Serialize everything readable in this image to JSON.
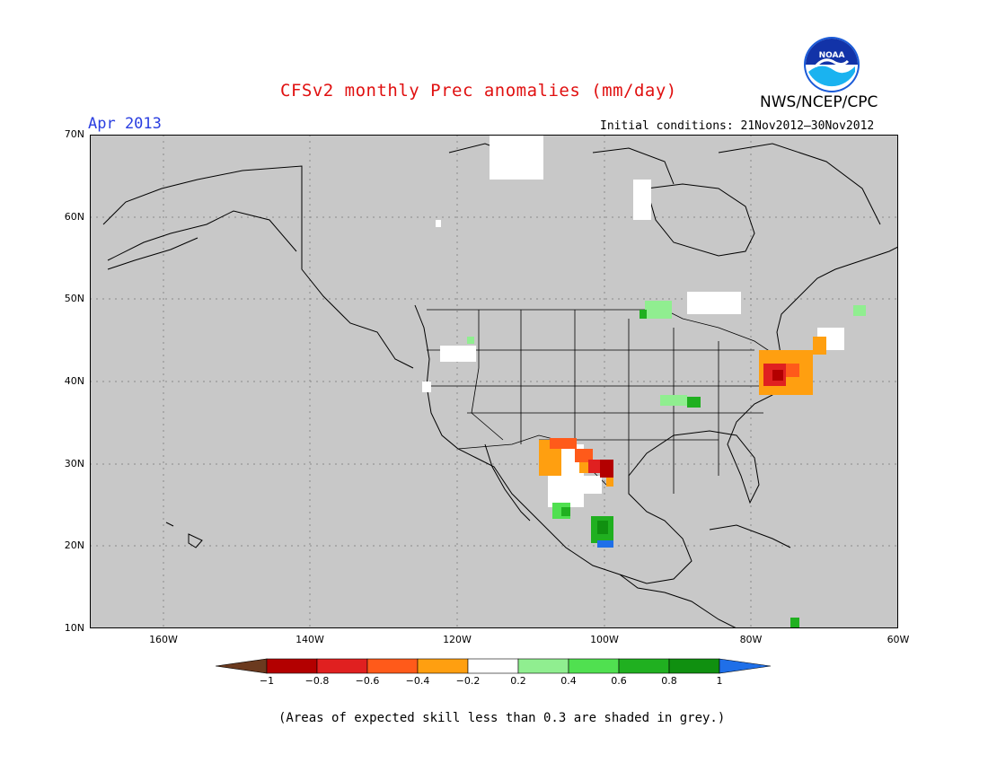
{
  "header": {
    "title": "CFSv2 monthly Prec anomalies (mm/day)",
    "agency": "NWS/NCEP/CPC",
    "month": "Apr 2013",
    "initial_conditions": "Initial conditions: 21Nov2012–30Nov2012",
    "logo_text": "NOAA"
  },
  "map": {
    "region": "North America",
    "projection": "lat-lon",
    "lat_range": [
      10,
      70
    ],
    "lon_range": [
      -170,
      -60
    ],
    "lat_labels": [
      "70N",
      "60N",
      "50N",
      "40N",
      "30N",
      "20N",
      "10N"
    ],
    "lon_labels": [
      "160W",
      "140W",
      "120W",
      "100W",
      "80W",
      "60W"
    ],
    "background_color": "#c8c8c8",
    "gridlines": "dotted"
  },
  "colorbar": {
    "labels": [
      "−1",
      "−0.8",
      "−0.6",
      "−0.4",
      "−0.2",
      "0.2",
      "0.4",
      "0.6",
      "0.8",
      "1"
    ],
    "colors": [
      "#6b3a1f",
      "#b30000",
      "#e02020",
      "#ff5a1a",
      "#ff9f10",
      "#ffffff",
      "#90ee90",
      "#50e050",
      "#20b020",
      "#109010",
      "#1f6fe8"
    ]
  },
  "footnote": "(Areas of expected skill less than 0.3 are shaded in grey.)"
}
